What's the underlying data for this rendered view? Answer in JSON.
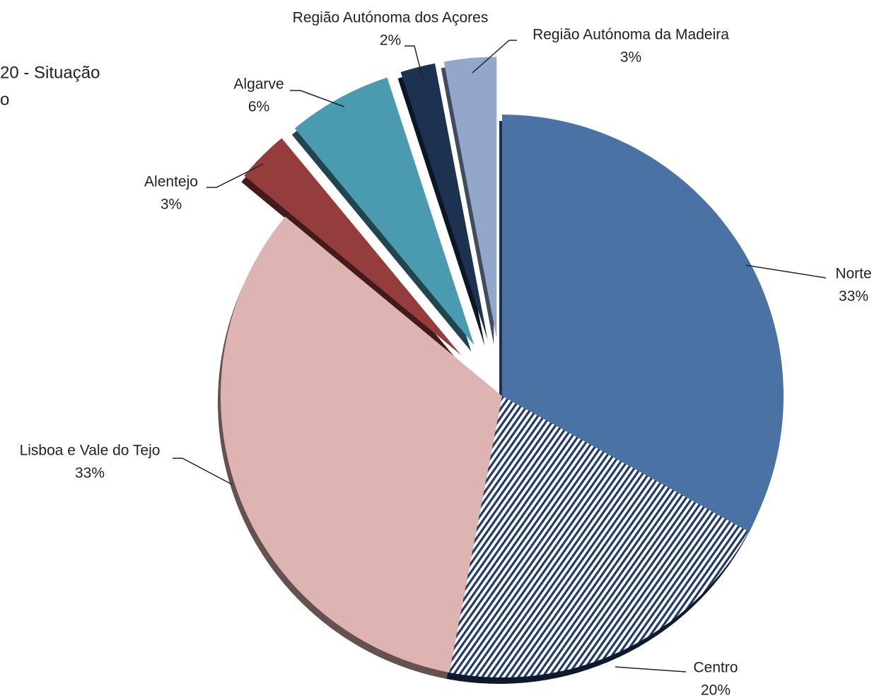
{
  "chart_data": {
    "type": "pie",
    "title_lines": [
      "20 - Situação",
      "o"
    ],
    "categories": [
      "Norte",
      "Centro",
      "Lisboa e Vale do Tejo",
      "Alentejo",
      "Algarve",
      "Região Autónoma dos Açores",
      "Região Autónoma da Madeira"
    ],
    "values": [
      33,
      20,
      33,
      3,
      6,
      2,
      3
    ],
    "value_labels": [
      "33%",
      "20%",
      "33%",
      "3%",
      "6%",
      "2%",
      "3%"
    ],
    "colors": [
      "#4a72a4",
      "#1f3864",
      "#deb4b2",
      "#953d3d",
      "#4a9ab0",
      "#1d3150",
      "#93a7cb"
    ],
    "hatch": [
      false,
      true,
      false,
      false,
      false,
      false,
      false
    ],
    "explode": [
      false,
      false,
      false,
      true,
      true,
      true,
      true
    ]
  }
}
